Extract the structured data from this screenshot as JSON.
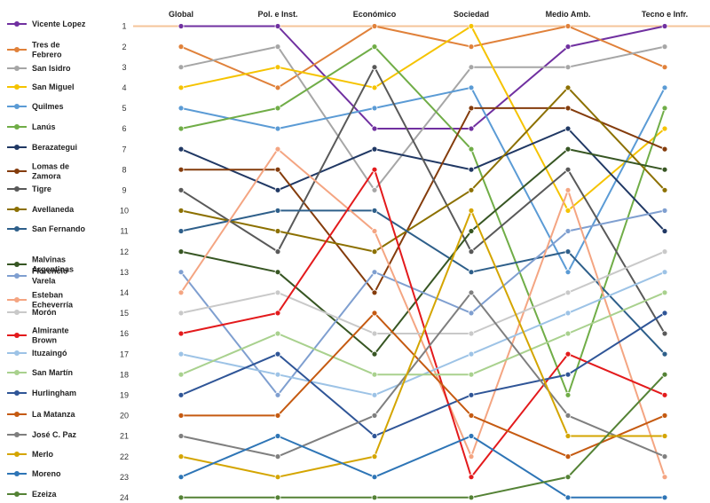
{
  "chart_data": {
    "type": "line",
    "categories": [
      "Global",
      "Pol. e Inst.",
      "Económico",
      "Sociedad",
      "Medio Amb.",
      "Tecno e Infr."
    ],
    "y_axis": {
      "ticks": [
        1,
        2,
        3,
        4,
        5,
        6,
        7,
        8,
        9,
        10,
        11,
        12,
        13,
        14,
        15,
        16,
        17,
        18,
        19,
        20,
        21,
        22,
        23,
        24
      ],
      "inverted": true,
      "ylim": [
        1,
        24
      ]
    },
    "reference_line": {
      "value": 1,
      "color": "#f4c59a"
    },
    "legend_position": "left",
    "series": [
      {
        "name": "Vicente Lopez",
        "color": "#7030a0",
        "values": [
          1,
          1,
          6,
          6,
          2,
          1
        ]
      },
      {
        "name": "Tres de\nFebrero",
        "color": "#e0813a",
        "values": [
          2,
          4,
          1,
          2,
          1,
          3
        ]
      },
      {
        "name": "San Isidro",
        "color": "#a6a6a6",
        "values": [
          3,
          2,
          9,
          3,
          3,
          2
        ]
      },
      {
        "name": "San Miguel",
        "color": "#f5c300",
        "values": [
          4,
          3,
          4,
          1,
          10,
          6
        ]
      },
      {
        "name": "Quilmes",
        "color": "#5b9bd5",
        "values": [
          5,
          6,
          5,
          4,
          13,
          4
        ]
      },
      {
        "name": "Lanús",
        "color": "#70ad47",
        "values": [
          6,
          5,
          2,
          7,
          19,
          5
        ]
      },
      {
        "name": "Berazategui",
        "color": "#203864",
        "values": [
          7,
          9,
          7,
          8,
          6,
          11
        ]
      },
      {
        "name": "Lomas de\nZamora",
        "color": "#843c0c",
        "values": [
          8,
          8,
          14,
          5,
          5,
          7
        ]
      },
      {
        "name": "Tigre",
        "color": "#595959",
        "values": [
          9,
          12,
          3,
          12,
          8,
          16
        ]
      },
      {
        "name": "Avellaneda",
        "color": "#8c7000",
        "values": [
          10,
          11,
          12,
          9,
          4,
          9
        ]
      },
      {
        "name": "San Fernando",
        "color": "#2e5f8a",
        "values": [
          11,
          10,
          10,
          13,
          12,
          17
        ]
      },
      {
        "name": "Malvinas\nArgentinas",
        "color": "#375623",
        "values": [
          12,
          13,
          17,
          11,
          7,
          8
        ]
      },
      {
        "name": "Florencio\nVarela",
        "color": "#7f9fd0",
        "values": [
          13,
          19,
          13,
          15,
          11,
          10
        ]
      },
      {
        "name": "Esteban\nEcheverría",
        "color": "#f4a582",
        "values": [
          14,
          7,
          11,
          22,
          9,
          23
        ]
      },
      {
        "name": "Morón",
        "color": "#c9c9c9",
        "values": [
          15,
          14,
          16,
          16,
          14,
          12
        ]
      },
      {
        "name": "Almirante\nBrown",
        "color": "#e31a1c",
        "values": [
          16,
          15,
          8,
          23,
          17,
          19
        ]
      },
      {
        "name": "Ituzaingó",
        "color": "#9dc3e6",
        "values": [
          17,
          18,
          19,
          17,
          15,
          13
        ]
      },
      {
        "name": "San Martín",
        "color": "#a9d18e",
        "values": [
          18,
          16,
          18,
          18,
          16,
          14
        ]
      },
      {
        "name": "Hurlingham",
        "color": "#2f5597",
        "values": [
          19,
          17,
          21,
          19,
          18,
          15
        ]
      },
      {
        "name": "La Matanza",
        "color": "#c55a11",
        "values": [
          20,
          20,
          15,
          20,
          22,
          20
        ]
      },
      {
        "name": "José C. Paz",
        "color": "#7f7f7f",
        "values": [
          21,
          22,
          20,
          14,
          20,
          22
        ]
      },
      {
        "name": "Merlo",
        "color": "#d4a500",
        "values": [
          22,
          23,
          22,
          10,
          21,
          21
        ]
      },
      {
        "name": "Moreno",
        "color": "#2e75b6",
        "values": [
          23,
          21,
          23,
          21,
          24,
          24
        ]
      },
      {
        "name": "Ezeiza",
        "color": "#548235",
        "values": [
          24,
          24,
          24,
          24,
          23,
          18
        ]
      }
    ]
  }
}
